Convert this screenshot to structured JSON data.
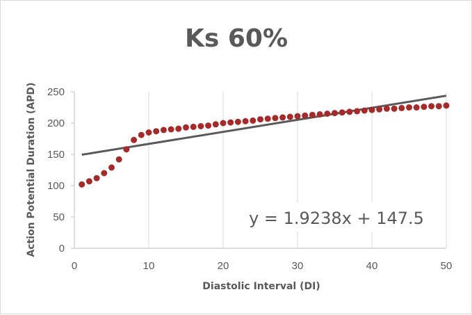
{
  "chart_data": {
    "type": "scatter",
    "title": "Ks 60%",
    "xlabel": "Diastolic Interval (DI)",
    "ylabel": "Action Potential Duration (APD)",
    "xlim": [
      0,
      50
    ],
    "ylim": [
      0,
      250
    ],
    "xticks": [
      "0",
      "10",
      "20",
      "30",
      "40",
      "50"
    ],
    "yticks": [
      "0",
      "50",
      "100",
      "150",
      "200",
      "250"
    ],
    "grid": "vertical",
    "series": [
      {
        "type": "scatter",
        "color": "#a52a2a",
        "x": [
          1,
          2,
          3,
          4,
          5,
          6,
          7,
          8,
          9,
          10,
          11,
          12,
          13,
          14,
          15,
          16,
          17,
          18,
          19,
          20,
          21,
          22,
          23,
          24,
          25,
          26,
          27,
          28,
          29,
          30,
          31,
          32,
          33,
          34,
          35,
          36,
          37,
          38,
          39,
          40,
          41,
          42,
          43,
          44,
          45,
          46,
          47,
          48,
          49,
          50
        ],
        "y": [
          102,
          107,
          112,
          120,
          129,
          142,
          158,
          173,
          181,
          185,
          187,
          189,
          190,
          191,
          193,
          194,
          195,
          196,
          198,
          200,
          201,
          202,
          203,
          204,
          206,
          207,
          208,
          209,
          210,
          211,
          212,
          213,
          214,
          215,
          216,
          217,
          218,
          219,
          220,
          221,
          222,
          223,
          223,
          224,
          225,
          225,
          226,
          227,
          227,
          228
        ]
      },
      {
        "type": "line",
        "color": "#595959",
        "x": [
          1,
          50
        ],
        "y": [
          149.4238,
          243.69
        ]
      }
    ],
    "annotations": [
      "y = 1.9238x + 147.5"
    ]
  }
}
